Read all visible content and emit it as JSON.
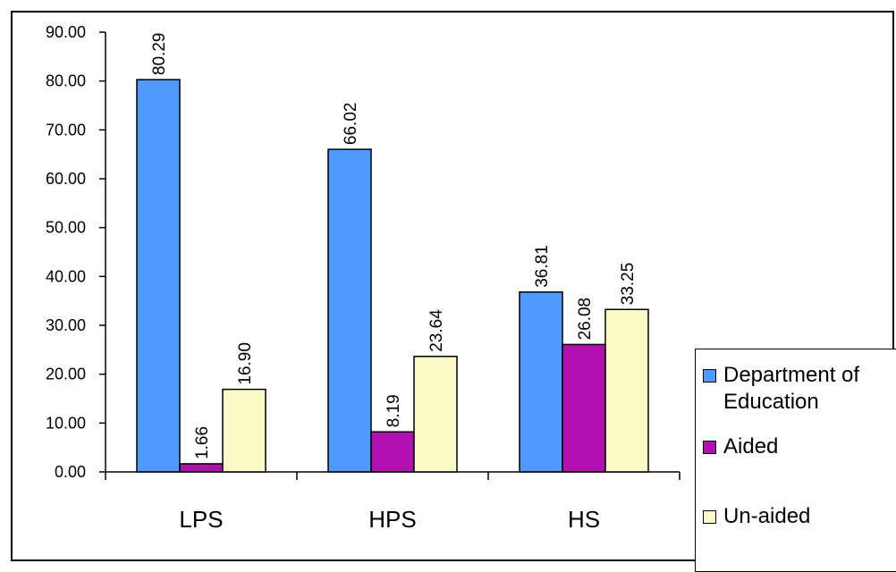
{
  "chart_data": {
    "type": "bar",
    "categories": [
      "LPS",
      "HPS",
      "HS"
    ],
    "series": [
      {
        "name": "Department of Education",
        "color": "#4f99ff",
        "values": [
          80.29,
          66.02,
          36.81
        ]
      },
      {
        "name": "Aided",
        "color": "#b011b0",
        "values": [
          1.66,
          8.19,
          26.08
        ]
      },
      {
        "name": "Un-aided",
        "color": "#fafac8",
        "values": [
          16.9,
          23.64,
          33.25
        ]
      }
    ],
    "data_labels": [
      [
        "80.29",
        "66.02",
        "36.81"
      ],
      [
        "1.66",
        "8.19",
        "26.08"
      ],
      [
        "16.90",
        "23.64",
        "33.25"
      ]
    ],
    "yticks": [
      "0.00",
      "10.00",
      "20.00",
      "30.00",
      "40.00",
      "50.00",
      "60.00",
      "70.00",
      "80.00",
      "90.00"
    ],
    "ylim": [
      0,
      90
    ],
    "title": "",
    "xlabel": "",
    "ylabel": "",
    "grid": false,
    "legend_position": "right"
  }
}
